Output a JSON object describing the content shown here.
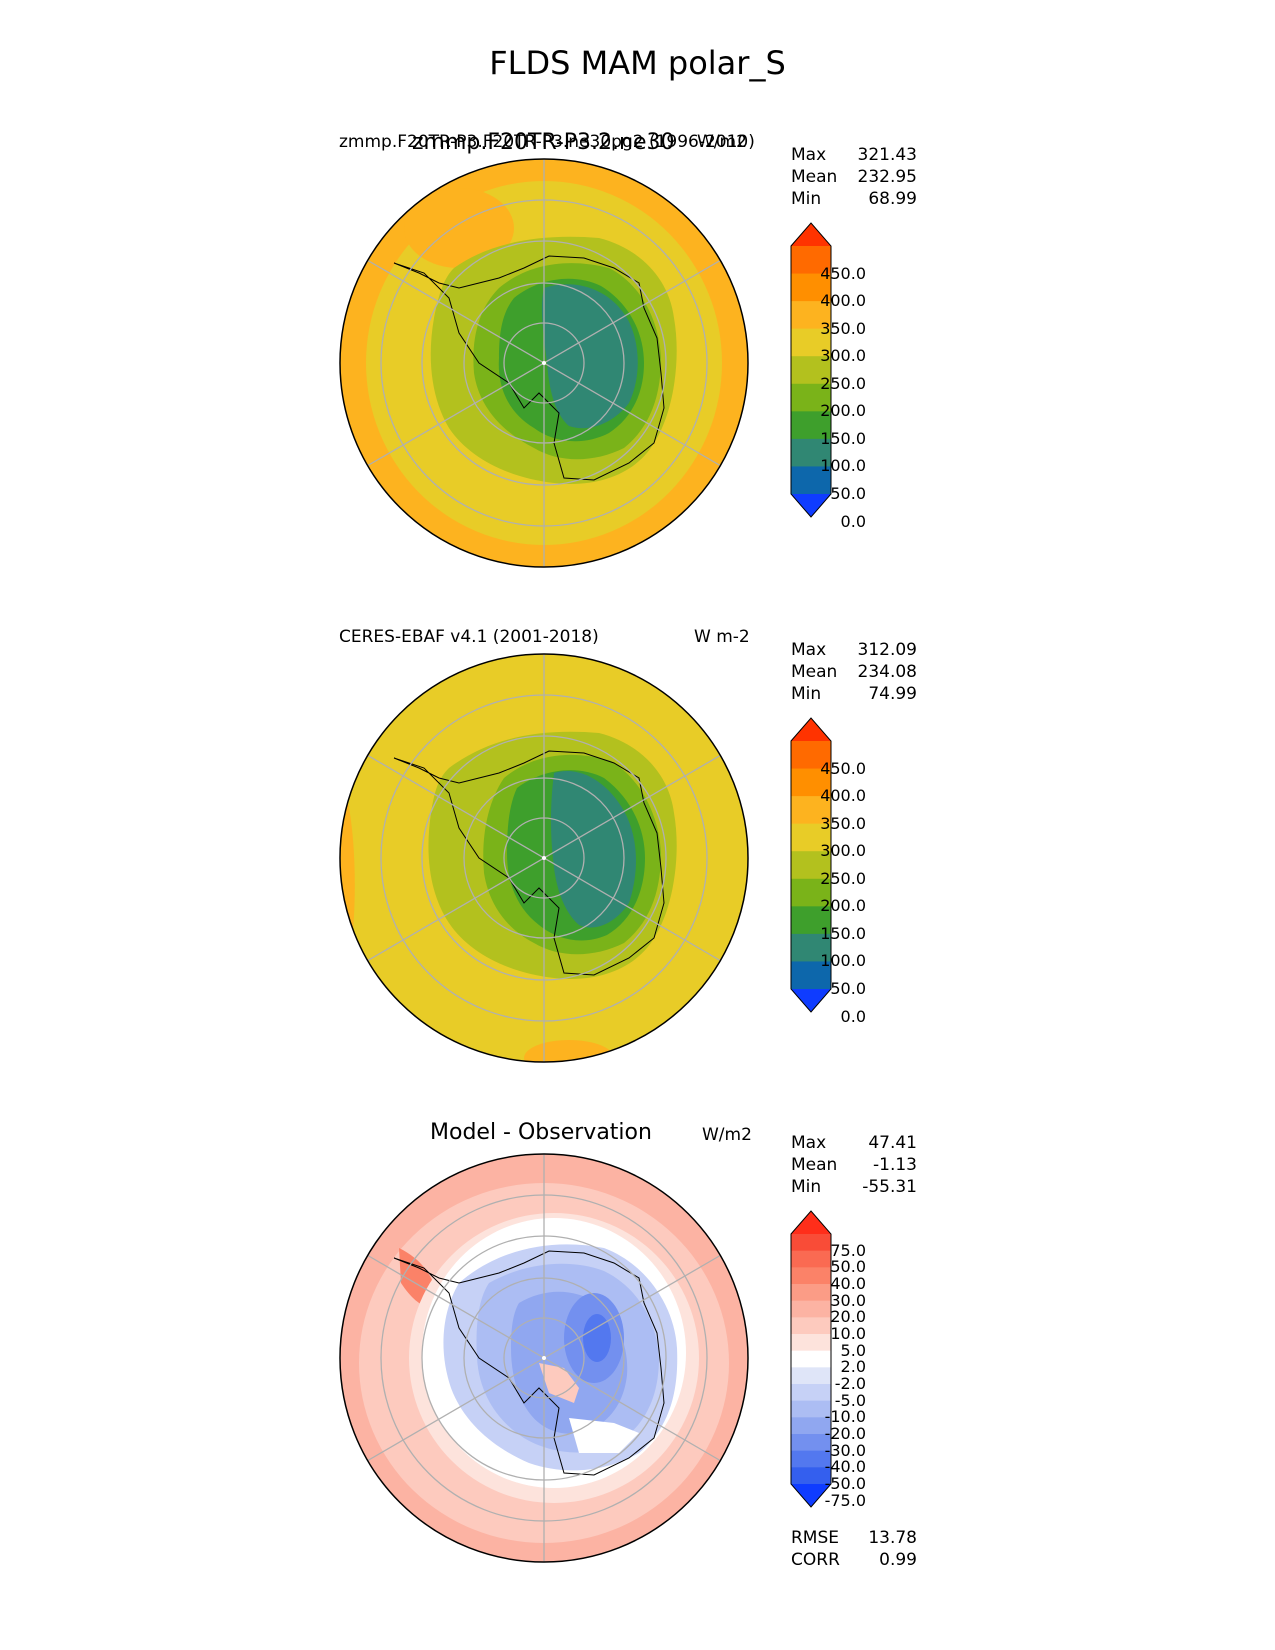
{
  "title": "FLDS MAM polar_S",
  "panels": [
    {
      "left_label": "zmmp.F20TR-P3.F20TR-P3.ne30pg2 (1996-2010)",
      "center_label": "zmmp.F20TR-P3.2.ne30",
      "units": "W/m2",
      "stats": [
        {
          "label": "Max",
          "value": "321.43"
        },
        {
          "label": "Mean",
          "value": "232.95"
        },
        {
          "label": "Min",
          "value": "68.99"
        }
      ]
    },
    {
      "left_label": "CERES-EBAF v4.1 (2001-2018)",
      "center_label": "",
      "units": "W m-2",
      "stats": [
        {
          "label": "Max",
          "value": "312.09"
        },
        {
          "label": "Mean",
          "value": "234.08"
        },
        {
          "label": "Min",
          "value": "74.99"
        }
      ]
    },
    {
      "left_label": "",
      "center_label": "Model - Observation",
      "units": "W/m2",
      "stats": [
        {
          "label": "Max",
          "value": "47.41"
        },
        {
          "label": "Mean",
          "value": "-1.13"
        },
        {
          "label": "Min",
          "value": "-55.31"
        }
      ],
      "extra_stats": [
        {
          "label": "RMSE",
          "value": "13.78"
        },
        {
          "label": "CORR",
          "value": "0.99"
        }
      ]
    }
  ],
  "colorbar_abs": {
    "ticks": [
      "450.0",
      "400.0",
      "350.0",
      "300.0",
      "250.0",
      "200.0",
      "150.0",
      "100.0",
      "50.0",
      "0.0"
    ],
    "colors": [
      "#ff3300",
      "#ff6a00",
      "#ff8f00",
      "#fdb31f",
      "#e8cc27",
      "#b3c11e",
      "#7ab319",
      "#3e9f2c",
      "#308773",
      "#0d67ab",
      "#0f3cff"
    ]
  },
  "colorbar_diff": {
    "ticks": [
      "75.0",
      "50.0",
      "40.0",
      "30.0",
      "20.0",
      "10.0",
      "5.0",
      "2.0",
      "-2.0",
      "-5.0",
      "-10.0",
      "-20.0",
      "-30.0",
      "-40.0",
      "-50.0",
      "-75.0"
    ],
    "colors": [
      "#ff2e1a",
      "#f94c37",
      "#fa6a52",
      "#fb8268",
      "#fb9c86",
      "#fcb3a3",
      "#fdcabe",
      "#fde3dc",
      "#ffffff",
      "#dfe5f8",
      "#c6d1f6",
      "#acbdf3",
      "#90a7f0",
      "#7390ef",
      "#5378ef",
      "#345fee",
      "#0f3cff"
    ]
  },
  "chart_data": [
    {
      "type": "heatmap",
      "projection": "south polar stereographic",
      "title": "zmmp.F20TR-P3.F20TR-P3.ne30pg2 (1996-2010)",
      "units": "W/m2",
      "levels": [
        0,
        50,
        100,
        150,
        200,
        250,
        300,
        350,
        400,
        450
      ],
      "max": 321.43,
      "mean": 232.95,
      "min": 68.99
    },
    {
      "type": "heatmap",
      "projection": "south polar stereographic",
      "title": "CERES-EBAF v4.1 (2001-2018)",
      "units": "W m-2",
      "levels": [
        0,
        50,
        100,
        150,
        200,
        250,
        300,
        350,
        400,
        450
      ],
      "max": 312.09,
      "mean": 234.08,
      "min": 74.99
    },
    {
      "type": "heatmap",
      "projection": "south polar stereographic",
      "title": "Model - Observation",
      "units": "W/m2",
      "levels": [
        -75,
        -50,
        -40,
        -30,
        -20,
        -10,
        -5,
        -2,
        2,
        5,
        10,
        20,
        30,
        40,
        50,
        75
      ],
      "max": 47.41,
      "mean": -1.13,
      "min": -55.31,
      "rmse": 13.78,
      "corr": 0.99
    }
  ]
}
